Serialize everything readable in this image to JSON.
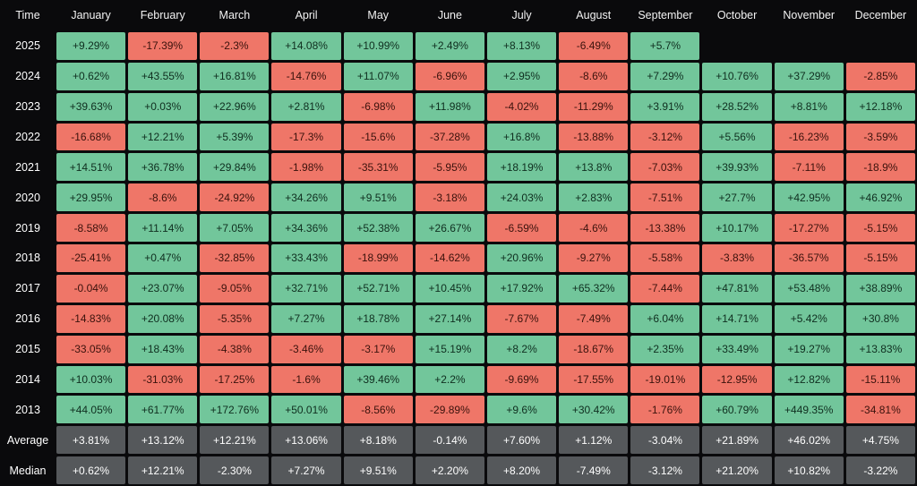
{
  "colors": {
    "background": "#0a0a0c",
    "positive": "#72c69b",
    "negative": "#ef7668",
    "summary": "#55585b",
    "header_text": "#f2f2f2",
    "label_text": "#ffffff",
    "positive_text": "#0f2e1f",
    "negative_text": "#3a120c",
    "summary_text": "#ffffff"
  },
  "chart_data": {
    "type": "heatmap",
    "title": "",
    "legend_position": "none",
    "value_unit": "%",
    "columns": [
      "Time",
      "January",
      "February",
      "March",
      "April",
      "May",
      "June",
      "July",
      "August",
      "September",
      "October",
      "November",
      "December"
    ],
    "rows": [
      {
        "label": "2025",
        "type": "year",
        "values": [
          "+9.29%",
          "-17.39%",
          "-2.3%",
          "+14.08%",
          "+10.99%",
          "+2.49%",
          "+8.13%",
          "-6.49%",
          "+5.7%",
          "",
          "",
          ""
        ]
      },
      {
        "label": "2024",
        "type": "year",
        "values": [
          "+0.62%",
          "+43.55%",
          "+16.81%",
          "-14.76%",
          "+11.07%",
          "-6.96%",
          "+2.95%",
          "-8.6%",
          "+7.29%",
          "+10.76%",
          "+37.29%",
          "-2.85%"
        ]
      },
      {
        "label": "2023",
        "type": "year",
        "values": [
          "+39.63%",
          "+0.03%",
          "+22.96%",
          "+2.81%",
          "-6.98%",
          "+11.98%",
          "-4.02%",
          "-11.29%",
          "+3.91%",
          "+28.52%",
          "+8.81%",
          "+12.18%"
        ]
      },
      {
        "label": "2022",
        "type": "year",
        "values": [
          "-16.68%",
          "+12.21%",
          "+5.39%",
          "-17.3%",
          "-15.6%",
          "-37.28%",
          "+16.8%",
          "-13.88%",
          "-3.12%",
          "+5.56%",
          "-16.23%",
          "-3.59%"
        ]
      },
      {
        "label": "2021",
        "type": "year",
        "values": [
          "+14.51%",
          "+36.78%",
          "+29.84%",
          "-1.98%",
          "-35.31%",
          "-5.95%",
          "+18.19%",
          "+13.8%",
          "-7.03%",
          "+39.93%",
          "-7.11%",
          "-18.9%"
        ]
      },
      {
        "label": "2020",
        "type": "year",
        "values": [
          "+29.95%",
          "-8.6%",
          "-24.92%",
          "+34.26%",
          "+9.51%",
          "-3.18%",
          "+24.03%",
          "+2.83%",
          "-7.51%",
          "+27.7%",
          "+42.95%",
          "+46.92%"
        ]
      },
      {
        "label": "2019",
        "type": "year",
        "values": [
          "-8.58%",
          "+11.14%",
          "+7.05%",
          "+34.36%",
          "+52.38%",
          "+26.67%",
          "-6.59%",
          "-4.6%",
          "-13.38%",
          "+10.17%",
          "-17.27%",
          "-5.15%"
        ]
      },
      {
        "label": "2018",
        "type": "year",
        "values": [
          "-25.41%",
          "+0.47%",
          "-32.85%",
          "+33.43%",
          "-18.99%",
          "-14.62%",
          "+20.96%",
          "-9.27%",
          "-5.58%",
          "-3.83%",
          "-36.57%",
          "-5.15%"
        ]
      },
      {
        "label": "2017",
        "type": "year",
        "values": [
          "-0.04%",
          "+23.07%",
          "-9.05%",
          "+32.71%",
          "+52.71%",
          "+10.45%",
          "+17.92%",
          "+65.32%",
          "-7.44%",
          "+47.81%",
          "+53.48%",
          "+38.89%"
        ]
      },
      {
        "label": "2016",
        "type": "year",
        "values": [
          "-14.83%",
          "+20.08%",
          "-5.35%",
          "+7.27%",
          "+18.78%",
          "+27.14%",
          "-7.67%",
          "-7.49%",
          "+6.04%",
          "+14.71%",
          "+5.42%",
          "+30.8%"
        ]
      },
      {
        "label": "2015",
        "type": "year",
        "values": [
          "-33.05%",
          "+18.43%",
          "-4.38%",
          "-3.46%",
          "-3.17%",
          "+15.19%",
          "+8.2%",
          "-18.67%",
          "+2.35%",
          "+33.49%",
          "+19.27%",
          "+13.83%"
        ]
      },
      {
        "label": "2014",
        "type": "year",
        "values": [
          "+10.03%",
          "-31.03%",
          "-17.25%",
          "-1.6%",
          "+39.46%",
          "+2.2%",
          "-9.69%",
          "-17.55%",
          "-19.01%",
          "-12.95%",
          "+12.82%",
          "-15.11%"
        ]
      },
      {
        "label": "2013",
        "type": "year",
        "values": [
          "+44.05%",
          "+61.77%",
          "+172.76%",
          "+50.01%",
          "-8.56%",
          "-29.89%",
          "+9.6%",
          "+30.42%",
          "-1.76%",
          "+60.79%",
          "+449.35%",
          "-34.81%"
        ]
      },
      {
        "label": "Average",
        "type": "summary",
        "values": [
          "+3.81%",
          "+13.12%",
          "+12.21%",
          "+13.06%",
          "+8.18%",
          "-0.14%",
          "+7.60%",
          "+1.12%",
          "-3.04%",
          "+21.89%",
          "+46.02%",
          "+4.75%"
        ]
      },
      {
        "label": "Median",
        "type": "summary",
        "values": [
          "+0.62%",
          "+12.21%",
          "-2.30%",
          "+7.27%",
          "+9.51%",
          "+2.20%",
          "+8.20%",
          "-7.49%",
          "-3.12%",
          "+21.20%",
          "+10.82%",
          "-3.22%"
        ]
      }
    ]
  }
}
